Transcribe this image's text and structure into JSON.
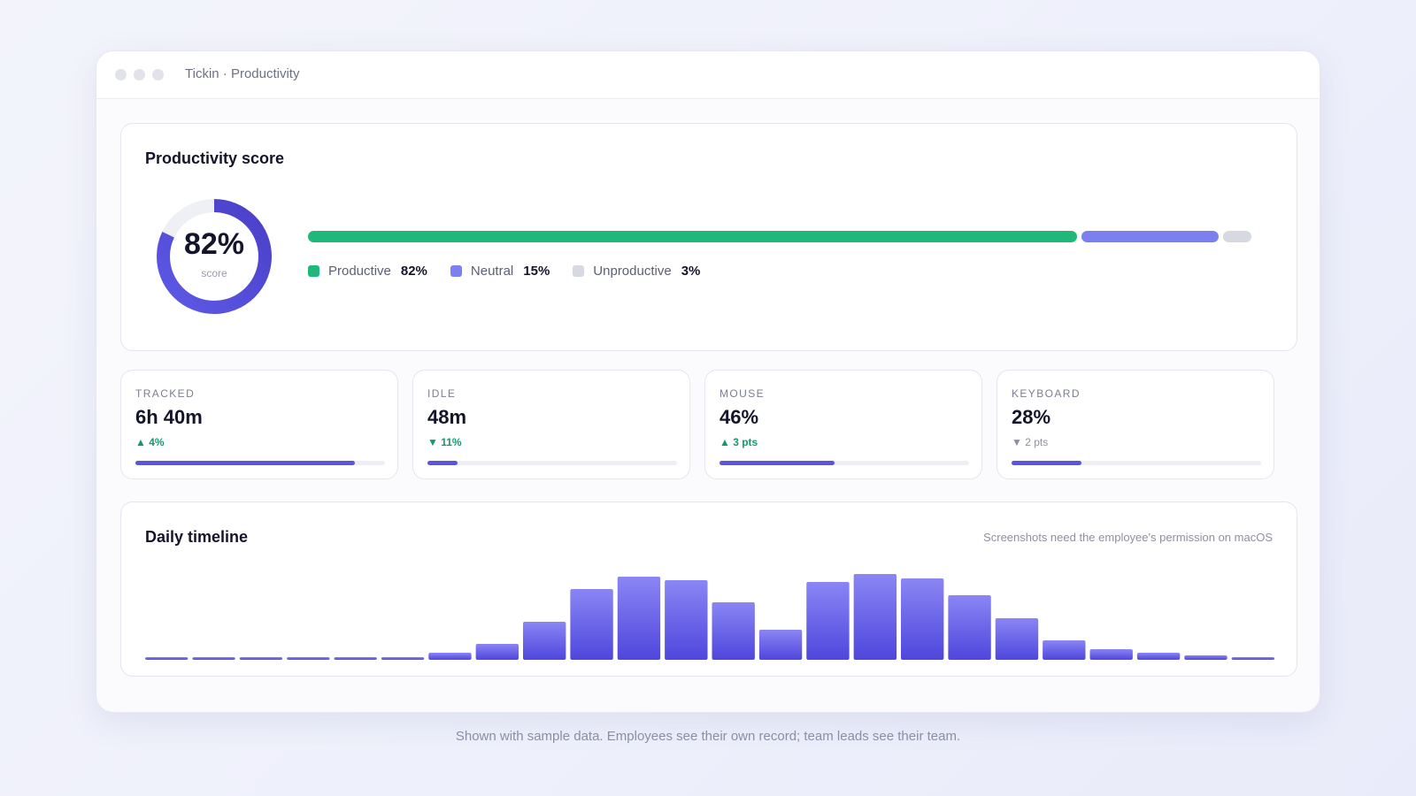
{
  "window": {
    "title": "Tickin · Productivity"
  },
  "score": {
    "title": "Productivity score",
    "value": "82%",
    "value_fraction": 0.82,
    "sublabel": "score",
    "segments": [
      {
        "name": "Productive",
        "value_label": "82%",
        "fraction": 0.82,
        "color": "#1fb87a"
      },
      {
        "name": "Neutral",
        "value_label": "15%",
        "fraction": 0.15,
        "color": "#7c7ff0"
      },
      {
        "name": "Unproductive",
        "value_label": "3%",
        "fraction": 0.03,
        "color": "#d6d8e2"
      }
    ]
  },
  "metrics": [
    {
      "label": "TRACKED",
      "value": "6h 40m",
      "delta": "▲ 4%",
      "trend": "up",
      "level": 0.88
    },
    {
      "label": "IDLE",
      "value": "48m",
      "delta": "▼ 11%",
      "trend": "down-good",
      "level": 0.12
    },
    {
      "label": "MOUSE",
      "value": "46%",
      "delta": "▲ 3 pts",
      "trend": "up",
      "level": 0.46
    },
    {
      "label": "KEYBOARD",
      "value": "28%",
      "delta": "▼ 2 pts",
      "trend": "down-neutral",
      "level": 0.28
    }
  ],
  "timeline": {
    "title": "Daily timeline",
    "note": "Screenshots need the employee's permission on macOS",
    "chart_data": {
      "type": "bar",
      "values": [
        3,
        3,
        3,
        3,
        3,
        3,
        8,
        18,
        43,
        80,
        94,
        90,
        65,
        34,
        88,
        97,
        92,
        73,
        47,
        22,
        12,
        8,
        5,
        3
      ]
    }
  },
  "footnote": "Shown with sample data. Employees see their own record; team leads see their team."
}
